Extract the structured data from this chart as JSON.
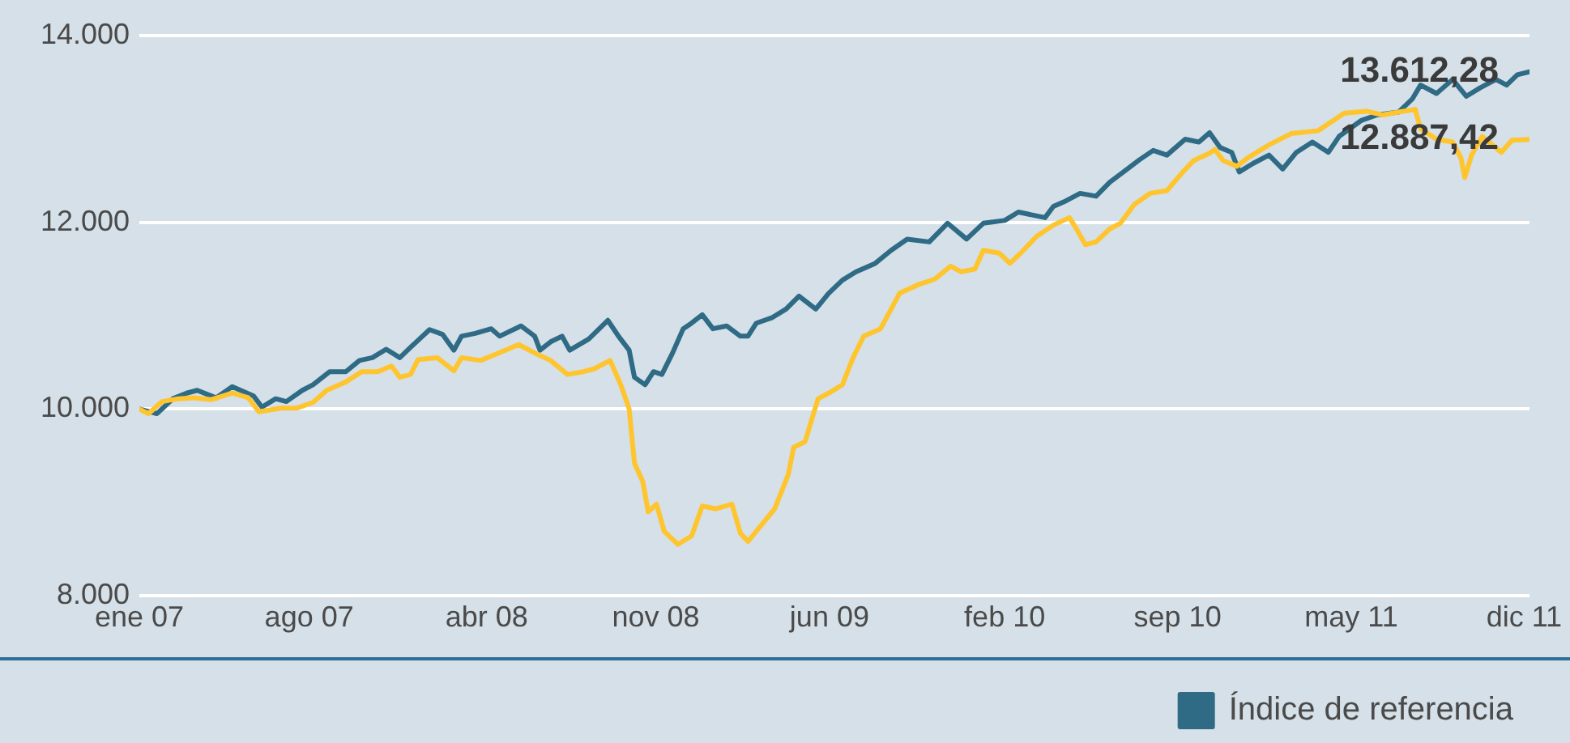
{
  "chart_data": {
    "type": "line",
    "xlim": [
      "2007-01-01",
      "2011-12-31"
    ],
    "xticks": [
      {
        "value": "2007-01-01",
        "label": "ene 07"
      },
      {
        "value": "2007-08-12",
        "label": "ago 07"
      },
      {
        "value": "2008-04-01",
        "label": "abr 08"
      },
      {
        "value": "2008-11-09",
        "label": "nov 08"
      },
      {
        "value": "2009-06-25",
        "label": "jun 09"
      },
      {
        "value": "2010-02-10",
        "label": "feb 10"
      },
      {
        "value": "2010-09-25",
        "label": "sep 10"
      },
      {
        "value": "2011-05-11",
        "label": "may 11"
      },
      {
        "value": "2011-12-24",
        "label": "dic 11"
      }
    ],
    "ylim": [
      8000,
      14000
    ],
    "yticks": [
      {
        "value": 8000,
        "label": "8.000"
      },
      {
        "value": 10000,
        "label": "10.000"
      },
      {
        "value": 12000,
        "label": "12.000"
      },
      {
        "value": 14000,
        "label": "14.000"
      }
    ],
    "grid": "y",
    "legend": "bottom right",
    "annotations": [
      {
        "text": "13.612,28",
        "x": "2011-12-31",
        "y": 13612.28
      },
      {
        "text": "12.887,42",
        "x": "2011-12-31",
        "y": 12887.42
      }
    ],
    "series": [
      {
        "color": "#ffc52f",
        "x": [
          "2007-01-01",
          "2007-01-13",
          "2007-01-31",
          "2007-02-21",
          "2007-03-14",
          "2007-04-05",
          "2007-05-03",
          "2007-05-24",
          "2007-06-07",
          "2007-07-06",
          "2007-07-27",
          "2007-08-17",
          "2007-09-04",
          "2007-09-29",
          "2007-10-20",
          "2007-11-10",
          "2007-11-28",
          "2007-12-09",
          "2007-12-23",
          "2008-01-02",
          "2008-01-27",
          "2008-02-18",
          "2008-02-28",
          "2008-03-24",
          "2008-04-14",
          "2008-05-13",
          "2008-06-03",
          "2008-06-24",
          "2008-07-16",
          "2008-08-06",
          "2008-08-20",
          "2008-09-10",
          "2008-09-24",
          "2008-10-05",
          "2008-10-12",
          "2008-10-23",
          "2008-10-30",
          "2008-11-10",
          "2008-11-20",
          "2008-12-08",
          "2008-12-26",
          "2009-01-09",
          "2009-01-27",
          "2009-02-17",
          "2009-02-28",
          "2009-03-10",
          "2009-03-24",
          "2009-04-14",
          "2009-05-02",
          "2009-05-09",
          "2009-05-24",
          "2009-06-10",
          "2009-06-24",
          "2009-07-12",
          "2009-07-26",
          "2009-08-09",
          "2009-08-31",
          "2009-09-14",
          "2009-09-25",
          "2009-10-19",
          "2009-11-10",
          "2009-12-01",
          "2009-12-15",
          "2010-01-02",
          "2010-01-13",
          "2010-02-03",
          "2010-02-17",
          "2010-03-03",
          "2010-03-24",
          "2010-04-15",
          "2010-05-06",
          "2010-05-13",
          "2010-05-27",
          "2010-06-10",
          "2010-06-28",
          "2010-07-12",
          "2010-07-30",
          "2010-08-20",
          "2010-09-11",
          "2010-10-02",
          "2010-10-16",
          "2010-11-06",
          "2010-11-13",
          "2010-11-24",
          "2010-12-12",
          "2010-12-26",
          "2011-01-23",
          "2011-02-21",
          "2011-03-28",
          "2011-05-02",
          "2011-05-31",
          "2011-06-21",
          "2011-07-12",
          "2011-08-03",
          "2011-08-10",
          "2011-08-31",
          "2011-09-21",
          "2011-10-02",
          "2011-10-07",
          "2011-10-16",
          "2011-10-30",
          "2011-11-24",
          "2011-12-08",
          "2011-12-31"
        ],
        "values": [
          10000,
          9950,
          10080,
          10110,
          10120,
          10100,
          10170,
          10120,
          9970,
          10010,
          10010,
          10070,
          10200,
          10290,
          10400,
          10400,
          10460,
          10340,
          10370,
          10530,
          10550,
          10410,
          10550,
          10520,
          10590,
          10690,
          10600,
          10520,
          10370,
          10400,
          10430,
          10520,
          10260,
          10000,
          9420,
          9220,
          8900,
          8980,
          8690,
          8550,
          8640,
          8960,
          8930,
          8980,
          8670,
          8580,
          8720,
          8930,
          9300,
          9590,
          9650,
          10110,
          10170,
          10260,
          10550,
          10780,
          10860,
          11070,
          11240,
          11330,
          11390,
          11530,
          11470,
          11500,
          11700,
          11670,
          11560,
          11670,
          11850,
          11970,
          12050,
          11960,
          11760,
          11790,
          11930,
          11990,
          12190,
          12310,
          12340,
          12540,
          12660,
          12740,
          12780,
          12660,
          12600,
          12690,
          12830,
          12950,
          12980,
          13170,
          13190,
          13150,
          13180,
          13210,
          13000,
          12890,
          12860,
          12690,
          12480,
          12720,
          12920,
          12750,
          12880,
          12887.42
        ]
      },
      {
        "name": "Índice de referencia",
        "color": "#2f6b85",
        "x": [
          "2007-01-01",
          "2007-01-24",
          "2007-02-14",
          "2007-03-04",
          "2007-03-18",
          "2007-04-12",
          "2007-05-03",
          "2007-05-31",
          "2007-06-11",
          "2007-06-29",
          "2007-07-13",
          "2007-08-03",
          "2007-08-17",
          "2007-09-08",
          "2007-09-29",
          "2007-10-17",
          "2007-11-03",
          "2007-11-21",
          "2007-12-09",
          "2007-12-23",
          "2008-01-17",
          "2008-02-03",
          "2008-02-18",
          "2008-02-28",
          "2008-03-17",
          "2008-04-07",
          "2008-04-18",
          "2008-05-16",
          "2008-06-03",
          "2008-06-10",
          "2008-06-24",
          "2008-07-09",
          "2008-07-19",
          "2008-08-13",
          "2008-09-07",
          "2008-09-21",
          "2008-10-05",
          "2008-10-12",
          "2008-10-26",
          "2008-11-06",
          "2008-11-17",
          "2008-12-01",
          "2008-12-15",
          "2008-12-26",
          "2009-01-09",
          "2009-01-23",
          "2009-02-10",
          "2009-02-28",
          "2009-03-10",
          "2009-03-21",
          "2009-04-11",
          "2009-04-29",
          "2009-05-16",
          "2009-06-07",
          "2009-06-24",
          "2009-07-12",
          "2009-07-30",
          "2009-08-24",
          "2009-09-14",
          "2009-10-05",
          "2009-11-03",
          "2009-11-27",
          "2009-12-22",
          "2010-01-13",
          "2010-02-10",
          "2010-02-28",
          "2010-04-04",
          "2010-04-15",
          "2010-04-29",
          "2010-05-20",
          "2010-06-10",
          "2010-06-28",
          "2010-07-16",
          "2010-08-06",
          "2010-08-24",
          "2010-09-11",
          "2010-10-05",
          "2010-10-23",
          "2010-11-06",
          "2010-11-20",
          "2010-12-05",
          "2010-12-15",
          "2011-01-02",
          "2011-01-23",
          "2011-02-10",
          "2011-02-28",
          "2011-03-21",
          "2011-04-11",
          "2011-04-25",
          "2011-05-24",
          "2011-06-14",
          "2011-07-12",
          "2011-07-30",
          "2011-08-10",
          "2011-08-31",
          "2011-09-21",
          "2011-10-09",
          "2011-10-27",
          "2011-11-17",
          "2011-12-01",
          "2011-12-15",
          "2011-12-31"
        ],
        "values": [
          10000,
          9950,
          10110,
          10170,
          10200,
          10120,
          10240,
          10140,
          10020,
          10110,
          10080,
          10200,
          10260,
          10400,
          10400,
          10520,
          10550,
          10640,
          10550,
          10660,
          10850,
          10800,
          10630,
          10780,
          10810,
          10860,
          10780,
          10890,
          10780,
          10630,
          10720,
          10780,
          10630,
          10750,
          10950,
          10780,
          10630,
          10340,
          10260,
          10400,
          10370,
          10600,
          10860,
          10920,
          11010,
          10860,
          10890,
          10780,
          10780,
          10920,
          10980,
          11070,
          11210,
          11070,
          11240,
          11380,
          11470,
          11560,
          11700,
          11820,
          11790,
          11990,
          11820,
          11990,
          12020,
          12110,
          12050,
          12170,
          12220,
          12310,
          12280,
          12430,
          12540,
          12670,
          12770,
          12720,
          12890,
          12860,
          12960,
          12800,
          12750,
          12540,
          12630,
          12720,
          12570,
          12750,
          12860,
          12750,
          12920,
          13090,
          13150,
          13180,
          13320,
          13470,
          13380,
          13530,
          13350,
          13440,
          13530,
          13470,
          13580,
          13612.28
        ]
      }
    ]
  }
}
